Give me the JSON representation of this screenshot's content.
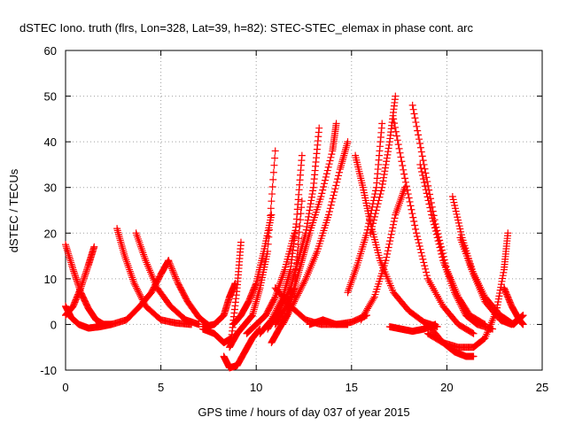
{
  "chart_data": {
    "type": "scatter",
    "title": "dSTEC Iono. truth (flrs, Lon=328, Lat=39, h=82): STEC-STEC_elemax in phase cont. arc",
    "xlabel": "GPS time / hours of day 037 of year 2015",
    "ylabel": "dSTEC  / TECUs",
    "xlim": [
      0,
      25
    ],
    "ylim": [
      -10,
      60
    ],
    "xticks": [
      "0",
      "5",
      "10",
      "15",
      "20",
      "25"
    ],
    "yticks": [
      "-10",
      "0",
      "10",
      "20",
      "30",
      "40",
      "50",
      "60"
    ],
    "grid": true,
    "marker": "+",
    "marker_color": "#ff0000",
    "series": [
      {
        "x": [
          0.0,
          0.4,
          0.8,
          1.2,
          1.6,
          2.0,
          2.4
        ],
        "y": [
          17.5,
          12,
          7,
          3.5,
          1,
          0,
          0
        ]
      },
      {
        "x": [
          0.0,
          0.4,
          0.8,
          1.2,
          1.5
        ],
        "y": [
          2,
          4,
          8,
          13,
          17
        ]
      },
      {
        "x": [
          0.0,
          0.3,
          0.7,
          1.2,
          1.8,
          2.4
        ],
        "y": [
          4,
          1.5,
          0,
          -0.8,
          -0.5,
          0
        ]
      },
      {
        "x": [
          2.7,
          3.1,
          3.6,
          4.2,
          5.0,
          5.8,
          6.6
        ],
        "y": [
          21,
          15,
          9,
          4,
          1,
          0.3,
          0
        ]
      },
      {
        "x": [
          3.7,
          4.2,
          4.8,
          5.5,
          6.3,
          7.0
        ],
        "y": [
          20,
          14,
          8,
          4,
          1,
          0
        ]
      },
      {
        "x": [
          2.4,
          3.2,
          3.9,
          4.5,
          5.0,
          5.4
        ],
        "y": [
          0,
          1,
          4,
          7,
          11,
          14
        ]
      },
      {
        "x": [
          5.4,
          5.9,
          6.4,
          7.0,
          7.6
        ],
        "y": [
          14,
          9,
          5,
          1.5,
          -0.5
        ]
      },
      {
        "x": [
          7.2,
          7.8,
          8.3,
          8.6,
          8.9
        ],
        "y": [
          -0.5,
          0,
          2,
          6,
          9
        ]
      },
      {
        "x": [
          7.2,
          7.8,
          8.3,
          8.7,
          9.0,
          9.2
        ],
        "y": [
          -1,
          -2,
          -4,
          -3,
          8,
          18
        ]
      },
      {
        "x": [
          8.3,
          8.6,
          9.0,
          9.4,
          9.8,
          10.2
        ],
        "y": [
          -7,
          -9.5,
          -9,
          -6,
          -3,
          -1
        ]
      },
      {
        "x": [
          8.6,
          9.0,
          9.4,
          9.8,
          10.2,
          10.6,
          11.0
        ],
        "y": [
          -5,
          -2,
          0,
          2,
          8,
          16,
          38
        ]
      },
      {
        "x": [
          8.8,
          9.2,
          9.6,
          10.0,
          10.4,
          10.8
        ],
        "y": [
          0,
          2,
          5,
          9,
          16,
          24
        ]
      },
      {
        "x": [
          9.5,
          10.0,
          10.5,
          11.0,
          11.5,
          12.0
        ],
        "y": [
          -2,
          0,
          2,
          6,
          12,
          20
        ]
      },
      {
        "x": [
          10.2,
          10.8,
          11.4,
          11.8,
          12.1,
          12.4
        ],
        "y": [
          -2,
          1,
          6,
          12,
          22,
          37
        ]
      },
      {
        "x": [
          10.6,
          11.2,
          11.8,
          12.2,
          12.6,
          13.0,
          13.3
        ],
        "y": [
          -1,
          3,
          8,
          14,
          20,
          30,
          43
        ]
      },
      {
        "x": [
          11.0,
          11.6,
          12.0,
          12.4,
          12.8,
          13.4,
          14.0,
          14.2
        ],
        "y": [
          0,
          4,
          8,
          14,
          20,
          28,
          38,
          44
        ]
      },
      {
        "x": [
          11.4,
          12.0,
          12.6,
          13.2,
          13.8,
          14.4,
          14.8
        ],
        "y": [
          0,
          5,
          10,
          16,
          24,
          34,
          40
        ]
      },
      {
        "x": [
          10.8,
          11.2,
          11.6,
          12.0,
          12.4
        ],
        "y": [
          -4,
          -1,
          2,
          8,
          27
        ]
      },
      {
        "x": [
          11.0,
          11.8,
          12.6,
          13.4,
          14.2,
          14.8
        ],
        "y": [
          8,
          4,
          1,
          0,
          0,
          0
        ]
      },
      {
        "x": [
          12.8,
          13.5,
          14.2,
          15.0,
          15.8
        ],
        "y": [
          0,
          1,
          0,
          0.5,
          2
        ]
      },
      {
        "x": [
          15.2,
          15.6,
          16.0,
          16.5,
          17.2,
          18.0,
          18.8,
          19.5
        ],
        "y": [
          37,
          30,
          22,
          14,
          7,
          3,
          0.5,
          -0.5
        ]
      },
      {
        "x": [
          15.5,
          16.2,
          16.8,
          17.3,
          17.8
        ],
        "y": [
          1,
          6,
          14,
          24,
          30
        ]
      },
      {
        "x": [
          16.0,
          16.6,
          17.0,
          17.3
        ],
        "y": [
          20,
          30,
          40,
          50
        ]
      },
      {
        "x": [
          14.8,
          15.3,
          15.8,
          16.3,
          16.6
        ],
        "y": [
          7,
          13,
          20,
          30,
          44
        ]
      },
      {
        "x": [
          17.2,
          17.8,
          18.4,
          19.0,
          19.8,
          20.6,
          21.4
        ],
        "y": [
          45,
          32,
          20,
          10,
          4,
          0,
          -2
        ]
      },
      {
        "x": [
          18.2,
          18.8,
          19.4,
          20.0,
          20.6,
          21.2,
          22.0
        ],
        "y": [
          48,
          35,
          22,
          12,
          6,
          2,
          0
        ]
      },
      {
        "x": [
          18.6,
          19.2,
          19.8,
          20.4,
          21.0,
          21.6,
          22.4
        ],
        "y": [
          35,
          24,
          14,
          7,
          2,
          0,
          -1
        ]
      },
      {
        "x": [
          20.3,
          20.8,
          21.4,
          22.0,
          22.8,
          23.4,
          24.0
        ],
        "y": [
          28,
          19,
          11,
          5,
          1,
          0,
          2
        ]
      },
      {
        "x": [
          20.7,
          21.3,
          22.0,
          22.8,
          23.5,
          24.0
        ],
        "y": [
          19,
          12,
          6,
          2,
          0,
          2
        ]
      },
      {
        "x": [
          19.0,
          19.8,
          20.6,
          21.4,
          22.0,
          22.6,
          23.0,
          23.2
        ],
        "y": [
          -2,
          -4,
          -5,
          -5,
          -3,
          3,
          12,
          20
        ]
      },
      {
        "x": [
          19.0,
          19.8,
          20.4,
          21.0,
          21.4
        ],
        "y": [
          0,
          -4,
          -6,
          -7,
          -7
        ]
      },
      {
        "x": [
          17.0,
          17.6,
          18.2,
          18.8,
          19.4
        ],
        "y": [
          -0.5,
          -1,
          -1.5,
          -1,
          0
        ]
      },
      {
        "x": [
          23.0,
          23.4,
          23.8,
          24.0
        ],
        "y": [
          8,
          4,
          1,
          0
        ]
      }
    ]
  }
}
